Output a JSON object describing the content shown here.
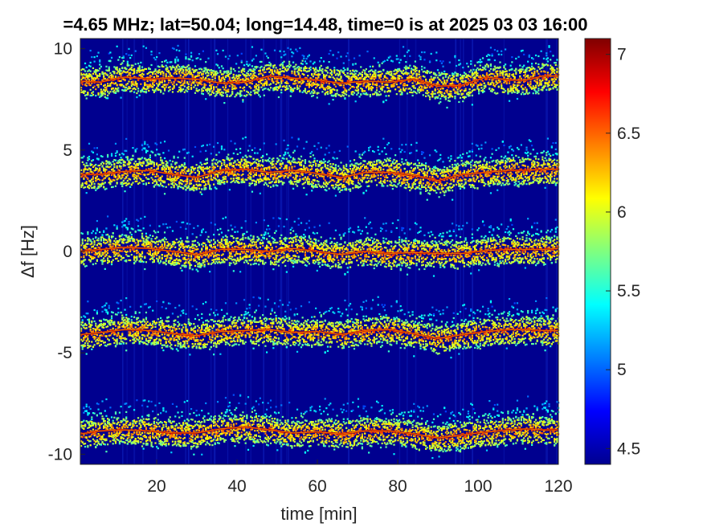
{
  "chart_data": {
    "type": "heatmap",
    "title": "=4.65 MHz;  lat=50.04; long=14.48, time=0 is at 2025 03 03 16:00",
    "xlabel": "time [min]",
    "ylabel": "Δf [Hz]",
    "xlim": [
      1,
      120
    ],
    "ylim": [
      -10.5,
      10.5
    ],
    "xticks": [
      "20",
      "40",
      "60",
      "80",
      "100",
      "120"
    ],
    "xtick_values": [
      20,
      40,
      60,
      80,
      100,
      120
    ],
    "yticks": [
      "10",
      "5",
      "0",
      "-5",
      "-10"
    ],
    "ytick_values": [
      10,
      5,
      0,
      -5,
      -10
    ],
    "colorbar": {
      "colormap": "jet",
      "range": [
        4.4,
        7.1
      ],
      "ticks": [
        "7",
        "6.5",
        "6",
        "5.5",
        "5",
        "4.5"
      ],
      "tick_values": [
        7,
        6.5,
        6,
        5.5,
        5,
        4.5
      ]
    },
    "background_value": 4.45,
    "series": [
      {
        "center_hz": 8.5,
        "values": [
          8.4,
          8.35,
          8.6,
          8.5,
          8.55,
          8.5,
          8.3,
          8.35,
          8.65,
          8.55,
          8.45,
          8.3,
          8.4,
          8.35,
          8.5,
          8.15,
          8.2,
          8.6,
          8.45,
          8.45,
          8.65,
          8.65
        ]
      },
      {
        "center_hz": 4.0,
        "values": [
          3.8,
          3.8,
          3.95,
          4.0,
          3.8,
          3.65,
          4.0,
          4.05,
          3.9,
          4.0,
          3.85,
          3.65,
          3.9,
          3.9,
          3.75,
          3.5,
          3.8,
          3.9,
          4.0,
          4.0,
          4.05,
          4.05
        ]
      },
      {
        "center_hz": 0.0,
        "values": [
          0.0,
          0.1,
          0.2,
          0.15,
          0.0,
          -0.15,
          0.1,
          0.1,
          0.0,
          0.15,
          0.0,
          -0.15,
          0.0,
          -0.1,
          -0.05,
          -0.1,
          -0.1,
          0.05,
          0.1,
          0.1,
          0.1,
          0.15
        ]
      },
      {
        "center_hz": -4.0,
        "values": [
          -4.1,
          -4.0,
          -3.85,
          -3.9,
          -4.05,
          -4.15,
          -3.95,
          -3.9,
          -3.85,
          -4.0,
          -3.95,
          -4.1,
          -3.9,
          -3.85,
          -4.05,
          -4.3,
          -4.1,
          -3.95,
          -3.85,
          -3.85,
          -3.9,
          -3.9
        ]
      },
      {
        "center_hz": -8.8,
        "values": [
          -9.0,
          -8.85,
          -8.8,
          -8.85,
          -8.95,
          -8.95,
          -8.75,
          -8.65,
          -8.8,
          -8.95,
          -8.9,
          -9.0,
          -8.85,
          -8.85,
          -9.0,
          -9.2,
          -9.05,
          -8.9,
          -8.8,
          -8.75,
          -8.8,
          -8.8
        ]
      }
    ],
    "series_x": [
      1,
      6,
      12,
      18,
      24,
      30,
      36,
      42,
      48,
      54,
      60,
      66,
      72,
      78,
      84,
      90,
      96,
      102,
      108,
      112,
      116,
      120
    ]
  }
}
